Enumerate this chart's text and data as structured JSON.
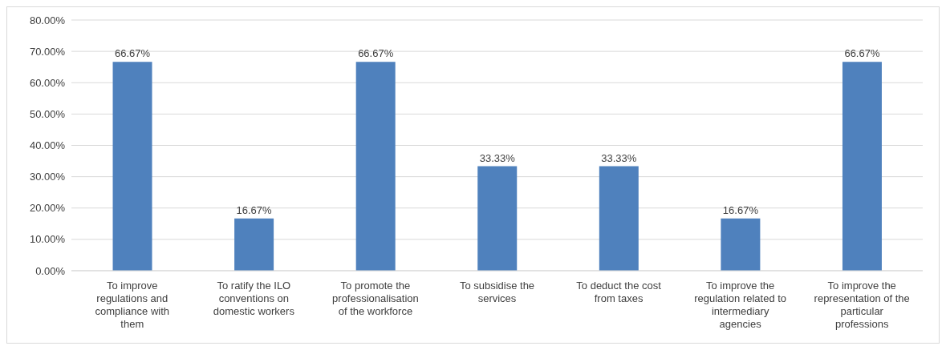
{
  "chart_data": {
    "type": "bar",
    "categories": [
      "To improve regulations and compliance with them",
      "To ratify the ILO conventions on domestic workers",
      "To promote the professionalisation of the workforce",
      "To subsidise the services",
      "To deduct the cost from taxes",
      "To improve the regulation related to intermediary agencies",
      "To improve the representation of the particular professions"
    ],
    "values": [
      66.67,
      16.67,
      66.67,
      33.33,
      33.33,
      16.67,
      66.67
    ],
    "value_labels": [
      "66.67%",
      "16.67%",
      "66.67%",
      "33.33%",
      "33.33%",
      "16.67%",
      "66.67%"
    ],
    "color": "#4f81bd",
    "ylim": [
      0,
      80
    ],
    "yticks": [
      {
        "value": 0,
        "label": "0.00%"
      },
      {
        "value": 10,
        "label": "10.00%"
      },
      {
        "value": 20,
        "label": "20.00%"
      },
      {
        "value": 30,
        "label": "30.00%"
      },
      {
        "value": 40,
        "label": "40.00%"
      },
      {
        "value": 50,
        "label": "50.00%"
      },
      {
        "value": 60,
        "label": "60.00%"
      },
      {
        "value": 70,
        "label": "70.00%"
      },
      {
        "value": 80,
        "label": "80.00%"
      }
    ],
    "grid": "y"
  }
}
